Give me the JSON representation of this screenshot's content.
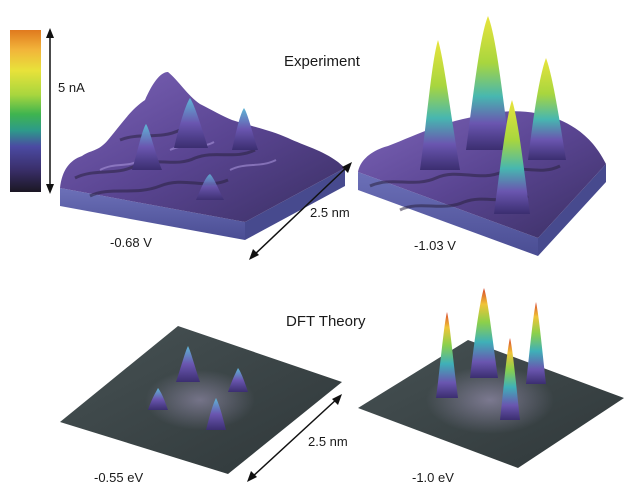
{
  "colorbar": {
    "label": "5 nA",
    "colors": [
      "#e07a1e",
      "#f2b43a",
      "#e8e23a",
      "#a8d63e",
      "#3fb44f",
      "#2d9a8a",
      "#4b4aa2",
      "#3a2f6b",
      "#1b1723"
    ]
  },
  "experiment": {
    "title": "Experiment",
    "scale_label": "2.5 nm",
    "panels": [
      {
        "label": "-0.68 V"
      },
      {
        "label": "-1.03 V"
      }
    ]
  },
  "theory": {
    "title": "DFT Theory",
    "scale_label": "2.5 nm",
    "panels": [
      {
        "label": "-0.55 eV"
      },
      {
        "label": "-1.0 eV"
      }
    ]
  },
  "palette": {
    "surface_purple": "#6a4ea8",
    "surface_dark": "#2b2440",
    "slab_side": "#5b5fa8",
    "theory_plane": "#3c4648",
    "peak_green": "#7cc24a",
    "peak_yellow": "#e8dd3c",
    "peak_red": "#d7422a"
  }
}
